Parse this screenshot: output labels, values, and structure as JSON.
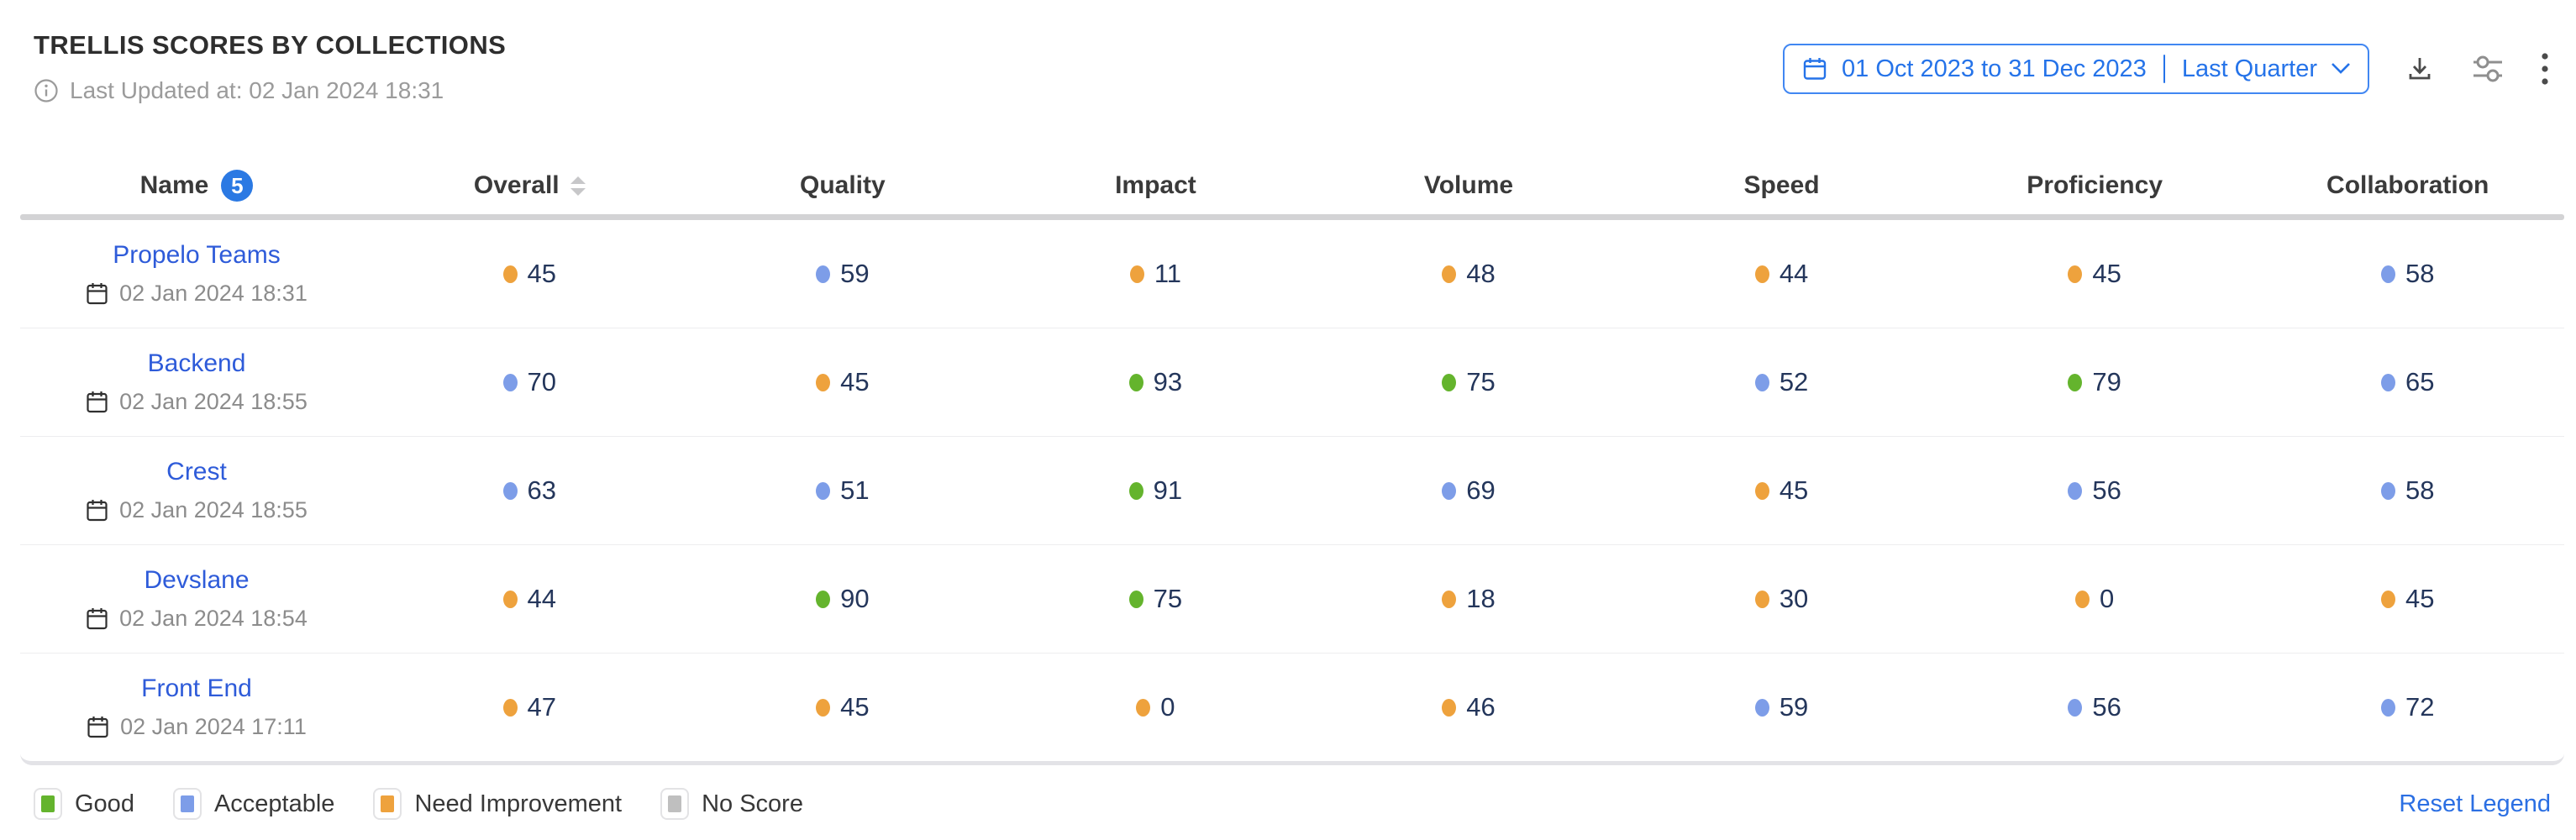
{
  "header": {
    "title": "TRELLIS SCORES BY COLLECTIONS",
    "last_updated": "Last Updated at: 02 Jan 2024 18:31",
    "date_range": {
      "range_text": "01 Oct 2023 to 31 Dec 2023",
      "preset_label": "Last Quarter"
    }
  },
  "table": {
    "name_column": {
      "label": "Name",
      "badge": "5"
    },
    "score_columns": [
      {
        "label": "Overall",
        "sortable": true
      },
      {
        "label": "Quality",
        "sortable": false
      },
      {
        "label": "Impact",
        "sortable": false
      },
      {
        "label": "Volume",
        "sortable": false
      },
      {
        "label": "Speed",
        "sortable": false
      },
      {
        "label": "Proficiency",
        "sortable": false
      },
      {
        "label": "Collaboration",
        "sortable": false
      }
    ],
    "rows": [
      {
        "name": "Propelo Teams",
        "updated": "02 Jan 2024 18:31",
        "scores": [
          {
            "value": 45,
            "level": "need_improvement"
          },
          {
            "value": 59,
            "level": "acceptable"
          },
          {
            "value": 11,
            "level": "need_improvement"
          },
          {
            "value": 48,
            "level": "need_improvement"
          },
          {
            "value": 44,
            "level": "need_improvement"
          },
          {
            "value": 45,
            "level": "need_improvement"
          },
          {
            "value": 58,
            "level": "acceptable"
          }
        ]
      },
      {
        "name": "Backend",
        "updated": "02 Jan 2024 18:55",
        "scores": [
          {
            "value": 70,
            "level": "acceptable"
          },
          {
            "value": 45,
            "level": "need_improvement"
          },
          {
            "value": 93,
            "level": "good"
          },
          {
            "value": 75,
            "level": "good"
          },
          {
            "value": 52,
            "level": "acceptable"
          },
          {
            "value": 79,
            "level": "good"
          },
          {
            "value": 65,
            "level": "acceptable"
          }
        ]
      },
      {
        "name": "Crest",
        "updated": "02 Jan 2024 18:55",
        "scores": [
          {
            "value": 63,
            "level": "acceptable"
          },
          {
            "value": 51,
            "level": "acceptable"
          },
          {
            "value": 91,
            "level": "good"
          },
          {
            "value": 69,
            "level": "acceptable"
          },
          {
            "value": 45,
            "level": "need_improvement"
          },
          {
            "value": 56,
            "level": "acceptable"
          },
          {
            "value": 58,
            "level": "acceptable"
          }
        ]
      },
      {
        "name": "Devslane",
        "updated": "02 Jan 2024 18:54",
        "scores": [
          {
            "value": 44,
            "level": "need_improvement"
          },
          {
            "value": 90,
            "level": "good"
          },
          {
            "value": 75,
            "level": "good"
          },
          {
            "value": 18,
            "level": "need_improvement"
          },
          {
            "value": 30,
            "level": "need_improvement"
          },
          {
            "value": 0,
            "level": "need_improvement"
          },
          {
            "value": 45,
            "level": "need_improvement"
          }
        ]
      },
      {
        "name": "Front End",
        "updated": "02 Jan 2024 17:11",
        "scores": [
          {
            "value": 47,
            "level": "need_improvement"
          },
          {
            "value": 45,
            "level": "need_improvement"
          },
          {
            "value": 0,
            "level": "need_improvement"
          },
          {
            "value": 46,
            "level": "need_improvement"
          },
          {
            "value": 59,
            "level": "acceptable"
          },
          {
            "value": 56,
            "level": "acceptable"
          },
          {
            "value": 72,
            "level": "acceptable"
          }
        ]
      }
    ]
  },
  "legend": {
    "items": [
      {
        "label": "Good",
        "level": "good"
      },
      {
        "label": "Acceptable",
        "level": "acceptable"
      },
      {
        "label": "Need Improvement",
        "level": "need_improvement"
      },
      {
        "label": "No Score",
        "level": "no_score"
      }
    ],
    "reset_label": "Reset Legend"
  },
  "colors": {
    "good": "#64B42D",
    "acceptable": "#7D9DE8",
    "need_improvement": "#EEA23D",
    "no_score": "#BFBFBF",
    "link_blue": "#2E5BD9",
    "datepicker_blue": "#2573E9",
    "reset_blue": "#2B6FE3"
  }
}
